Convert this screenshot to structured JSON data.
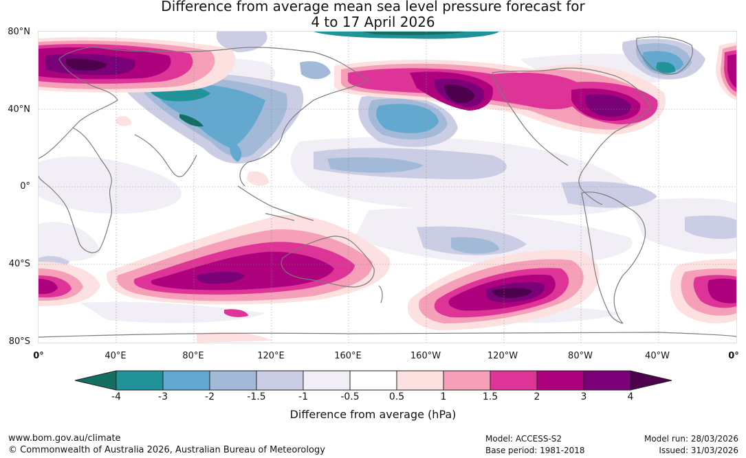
{
  "title_line1": "Difference from average mean sea level pressure forecast for",
  "title_line2": "4 to 17 April 2026",
  "latitude_labels": [
    "80°N",
    "40°N",
    "0°",
    "40°S",
    "80°S"
  ],
  "longitude_labels": [
    "0°",
    "40°E",
    "80°E",
    "120°E",
    "160°E",
    "160°W",
    "120°W",
    "80°W",
    "40°W",
    "0°"
  ],
  "legend": {
    "title": "Difference from average (hPa)",
    "boundaries": [
      "-4",
      "-3",
      "-2",
      "-1.5",
      "-1",
      "-0.5",
      "0.5",
      "1",
      "1.5",
      "2",
      "3",
      "4"
    ],
    "colors": [
      "#156e62",
      "#1f9398",
      "#63a9cf",
      "#a3b9d8",
      "#cbcde4",
      "#f2eef5",
      "#ffffff",
      "#fde0e0",
      "#f69fb8",
      "#de3497",
      "#ad017e",
      "#7a0177",
      "#4d004b"
    ]
  },
  "footer": {
    "website": "www.bom.gov.au/climate",
    "copyright": "© Commonwealth of Australia 2026, Australian Bureau of Meteorology",
    "model": "Model: ACCESS-S2",
    "base_period": "Base period: 1981-2018",
    "model_run": "Model run: 28/03/2026",
    "issued": "Issued: 31/03/2026"
  }
}
